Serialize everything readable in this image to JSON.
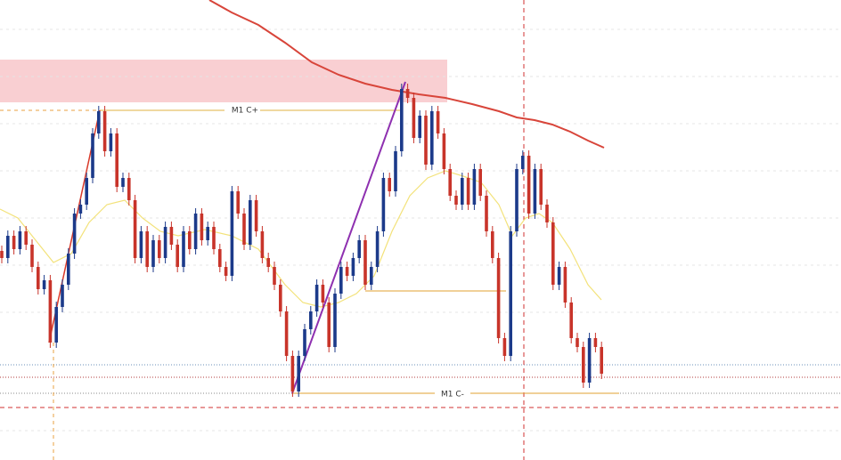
{
  "chart_data": {
    "type": "candlestick",
    "open": [
      235,
      227,
      252,
      237,
      257,
      242,
      217,
      192,
      202,
      132,
      172,
      197,
      232,
      277,
      287,
      317,
      367,
      392,
      347,
      367,
      307,
      317,
      292,
      227,
      257,
      217,
      247,
      227,
      262,
      242,
      217,
      257,
      237,
      277,
      247,
      262,
      237,
      217,
      207,
      302,
      277,
      242,
      292,
      257,
      227,
      217,
      197,
      167,
      117,
      77,
      117,
      147,
      167,
      197,
      177,
      127,
      187,
      217,
      207,
      227,
      247,
      197,
      217,
      257,
      317,
      302,
      347,
      417,
      407,
      362,
      387,
      332,
      392,
      367,
      327,
      297,
      287,
      317,
      287,
      327,
      297,
      257,
      227,
      137,
      117,
      257,
      327,
      342,
      277,
      327,
      287,
      267,
      197,
      217,
      177,
      137,
      127,
      87,
      137,
      127
    ],
    "high": [
      241,
      258,
      258,
      263,
      263,
      248,
      223,
      208,
      208,
      178,
      203,
      238,
      283,
      293,
      323,
      373,
      398,
      398,
      373,
      373,
      323,
      323,
      298,
      263,
      263,
      253,
      253,
      268,
      268,
      248,
      263,
      263,
      283,
      283,
      268,
      268,
      243,
      223,
      308,
      308,
      283,
      298,
      298,
      263,
      233,
      223,
      203,
      173,
      123,
      123,
      153,
      173,
      203,
      203,
      183,
      193,
      223,
      223,
      233,
      253,
      253,
      223,
      263,
      323,
      323,
      353,
      423,
      423,
      413,
      393,
      393,
      398,
      398,
      373,
      333,
      303,
      323,
      323,
      333,
      333,
      303,
      263,
      233,
      143,
      263,
      333,
      348,
      348,
      333,
      333,
      293,
      273,
      223,
      223,
      183,
      143,
      133,
      143,
      143,
      133
    ],
    "low": [
      221,
      221,
      231,
      231,
      236,
      211,
      186,
      186,
      126,
      126,
      166,
      191,
      226,
      271,
      281,
      311,
      361,
      341,
      341,
      301,
      301,
      286,
      221,
      221,
      211,
      211,
      221,
      221,
      236,
      211,
      211,
      231,
      231,
      241,
      241,
      231,
      211,
      201,
      201,
      271,
      236,
      236,
      251,
      221,
      211,
      191,
      161,
      111,
      71,
      71,
      111,
      141,
      161,
      171,
      121,
      121,
      181,
      201,
      201,
      221,
      191,
      191,
      211,
      251,
      296,
      296,
      341,
      401,
      356,
      356,
      326,
      326,
      361,
      321,
      291,
      281,
      281,
      281,
      281,
      291,
      251,
      221,
      131,
      111,
      111,
      251,
      321,
      271,
      271,
      281,
      261,
      191,
      191,
      171,
      131,
      121,
      81,
      81,
      121,
      91
    ],
    "close": [
      227,
      252,
      237,
      257,
      242,
      217,
      192,
      202,
      132,
      172,
      197,
      232,
      277,
      287,
      317,
      367,
      392,
      347,
      367,
      307,
      317,
      292,
      227,
      257,
      217,
      247,
      227,
      262,
      242,
      217,
      257,
      237,
      277,
      247,
      262,
      237,
      217,
      207,
      302,
      277,
      242,
      292,
      257,
      227,
      217,
      197,
      167,
      117,
      77,
      117,
      147,
      167,
      197,
      177,
      127,
      187,
      217,
      207,
      227,
      247,
      197,
      217,
      257,
      317,
      302,
      347,
      417,
      407,
      362,
      387,
      332,
      392,
      367,
      327,
      297,
      287,
      317,
      287,
      327,
      297,
      257,
      227,
      137,
      117,
      257,
      327,
      342,
      277,
      327,
      287,
      267,
      197,
      217,
      177,
      137,
      127,
      87,
      137,
      127,
      97
    ],
    "ylim": [
      0,
      517
    ],
    "up_color": "#1c3a8a",
    "down_color": "#c8342a",
    "annotations": [
      "M1 C+",
      "M1 C-"
    ]
  }
}
